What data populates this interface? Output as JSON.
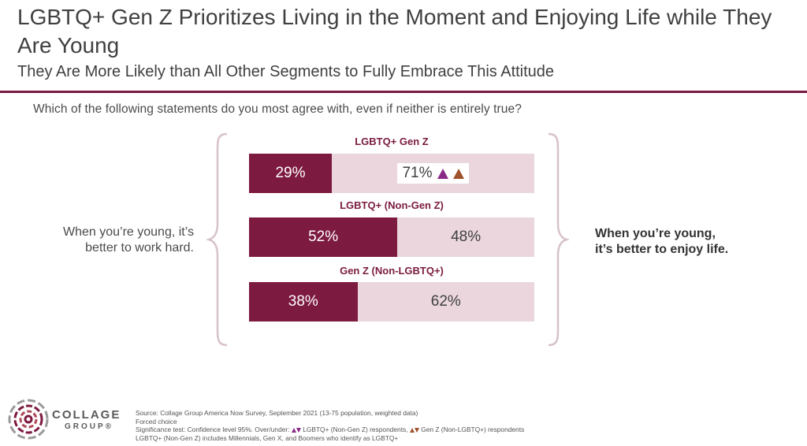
{
  "header": {
    "title": "LGBTQ+ Gen Z Prioritizes Living in the Moment and Enjoying Life while They Are Young",
    "subtitle": "They Are More Likely than All Other Segments to Fully Embrace This Attitude"
  },
  "question": "Which of the following statements do you most agree with, even if neither is entirely true?",
  "left_statement_line1": "When you’re young, it’s",
  "left_statement_line2": "better to work hard.",
  "right_statement_line1": "When you’re young,",
  "right_statement_line2": "it’s better to enjoy life.",
  "chart_data": {
    "type": "bar",
    "stacked": true,
    "orientation": "horizontal",
    "categories": [
      "LGBTQ+ Gen Z",
      "LGBTQ+ (Non-Gen Z)",
      "Gen Z (Non-LGBTQ+)"
    ],
    "series": [
      {
        "name": "When you’re young, it’s better to work hard.",
        "values": [
          29,
          52,
          38
        ],
        "labels": [
          "29%",
          "52%",
          "38%"
        ],
        "color": "#7d1a40"
      },
      {
        "name": "When you’re young, it’s better to enjoy life.",
        "values": [
          71,
          48,
          62
        ],
        "labels": [
          "71%",
          "48%",
          "62%"
        ],
        "color": "#ead6dc"
      }
    ],
    "significance": [
      {
        "category": "LGBTQ+ Gen Z",
        "series": 1,
        "markers": [
          "up-purple",
          "up-brown"
        ]
      }
    ],
    "xlim": [
      0,
      100
    ]
  },
  "footer": {
    "logo_line1": "COLLAGE",
    "logo_line2": "GROUP®",
    "note1": "Source: Collage Group America Now Survey, September 2021 (13-75 population, weighted data)",
    "note2": "Forced choice",
    "note3_prefix": "Significance test: Confidence level 95%. Over/under:",
    "note3_mid1": "LGBTQ+ (Non-Gen Z) respondents,",
    "note3_mid2": "Gen Z (Non-LGBTQ+) respondents",
    "note4": "LGBTQ+ (Non-Gen Z) includes Millennials, Gen X, and Boomers who identify as LGBTQ+"
  },
  "colors": {
    "accent": "#7d1a40",
    "light": "#ead6dc",
    "sig_purple": "#8b2a86",
    "sig_brown": "#a0522d"
  }
}
